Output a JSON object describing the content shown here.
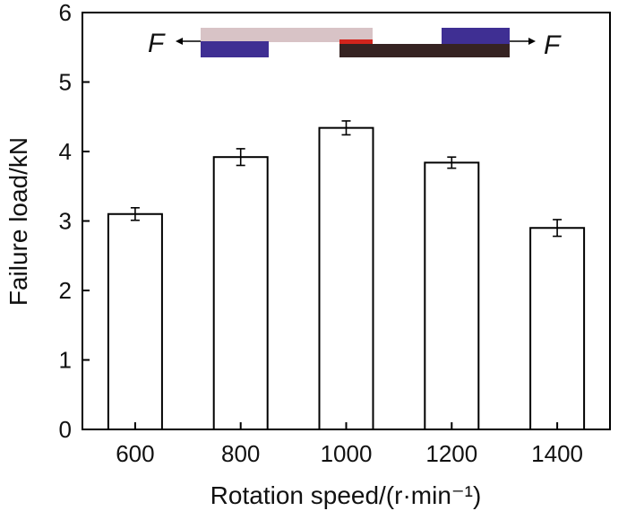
{
  "chart_data": {
    "type": "bar",
    "title": "",
    "xlabel": "Rotation speed/(r·min⁻¹)",
    "ylabel": "Failure load/kN",
    "categories": [
      "600",
      "800",
      "1000",
      "1200",
      "1400"
    ],
    "values": [
      3.1,
      3.92,
      4.34,
      3.84,
      2.9
    ],
    "errors": [
      0.09,
      0.12,
      0.1,
      0.08,
      0.12
    ],
    "ylim": [
      0,
      6
    ],
    "yticks": [
      "0",
      "1",
      "2",
      "3",
      "4",
      "5",
      "6"
    ],
    "grid": false,
    "bar_fill": "#ffffff",
    "bar_stroke": "#000000",
    "inset": {
      "left_force_label": "F",
      "right_force_label": "F",
      "colors": {
        "upper_sheet": "#d8c3c6",
        "left_block": "#3f2f93",
        "right_block": "#3f2f93",
        "lower_sheet": "#362322",
        "weld_zone": "#d2241c"
      }
    }
  }
}
